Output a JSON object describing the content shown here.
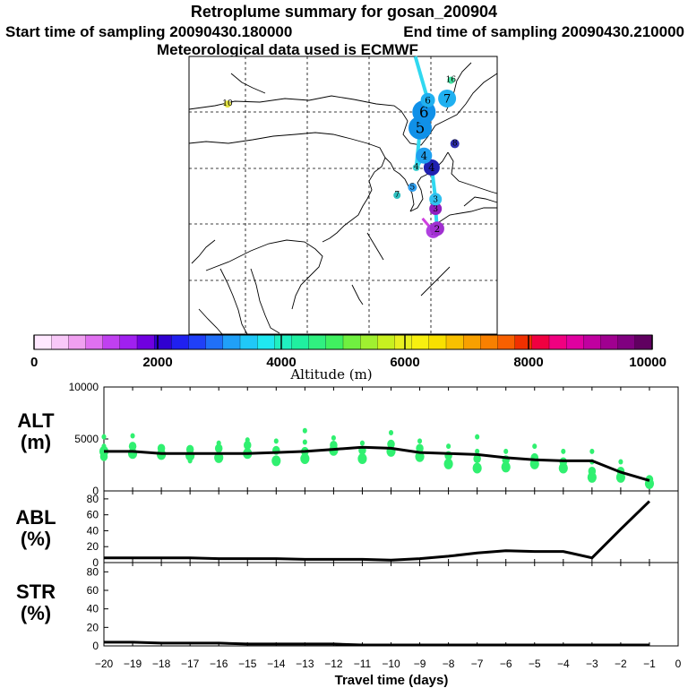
{
  "header": {
    "title": "Retroplume summary for gosan_200904",
    "start_label": "Start time of sampling 20090430.180000",
    "end_label": "End time of sampling 20090430.210000",
    "met_label": "Meteorological data used is ECMWF"
  },
  "map": {
    "points": [
      {
        "lon": 126.7,
        "lat": 33.0,
        "day": 1,
        "color": "#b040e0",
        "size": 8
      },
      {
        "lon": 127.2,
        "lat": 33.3,
        "day": 2,
        "color": "#a030d0",
        "size": 8
      },
      {
        "lon": 127.0,
        "lat": 35.8,
        "day": 3,
        "color": "#9020c0",
        "size": 7
      },
      {
        "lon": 127.0,
        "lat": 37.0,
        "day": 3,
        "color": "#30c0f0",
        "size": 7
      },
      {
        "lon": 126.5,
        "lat": 41.0,
        "day": 4,
        "color": "#2020b0",
        "size": 9
      },
      {
        "lon": 125.5,
        "lat": 42.5,
        "day": 4,
        "color": "#20a0f0",
        "size": 9
      },
      {
        "lon": 124.5,
        "lat": 41.0,
        "day": 4,
        "color": "#40d0d0",
        "size": 4
      },
      {
        "lon": 125.0,
        "lat": 46.0,
        "day": 5,
        "color": "#1090e8",
        "size": 13
      },
      {
        "lon": 125.5,
        "lat": 48.0,
        "day": 6,
        "color": "#1090e8",
        "size": 13
      },
      {
        "lon": 126.0,
        "lat": 49.5,
        "day": 6,
        "color": "#20b0f0",
        "size": 8
      },
      {
        "lon": 128.5,
        "lat": 49.7,
        "day": 7,
        "color": "#20b0f0",
        "size": 10
      },
      {
        "lon": 129.0,
        "lat": 52.0,
        "day": 16,
        "color": "#40e0a0",
        "size": 4
      },
      {
        "lon": 100.0,
        "lat": 49.0,
        "day": 10,
        "color": "#e0e040",
        "size": 4
      },
      {
        "lon": 129.5,
        "lat": 44.0,
        "day": 8,
        "color": "#3030b0",
        "size": 5
      },
      {
        "lon": 124.0,
        "lat": 38.5,
        "day": 5,
        "color": "#30a0f0",
        "size": 5
      },
      {
        "lon": 122.0,
        "lat": 37.5,
        "day": 7,
        "color": "#30c0c0",
        "size": 4
      }
    ],
    "plume_color": "#30d8f0",
    "violet_color": "#d040e0"
  },
  "colorbar": {
    "ticks": [
      "0",
      "2000",
      "4000",
      "6000",
      "8000",
      "10000"
    ],
    "label": "Altitude (m)",
    "colors": [
      "#ffe8ff",
      "#f8c8f8",
      "#f0a0f0",
      "#e070f0",
      "#c040f0",
      "#a020f0",
      "#7000e0",
      "#3000d0",
      "#2020f0",
      "#2040f8",
      "#2070f8",
      "#20a0f8",
      "#20c8f8",
      "#20e8f0",
      "#20f0c0",
      "#20f0a0",
      "#30f080",
      "#40f060",
      "#70f040",
      "#a0f030",
      "#c8f020",
      "#e8f020",
      "#f8f010",
      "#f8e000",
      "#f8c000",
      "#f8a000",
      "#f88000",
      "#f86000",
      "#f03000",
      "#f00040",
      "#f00080",
      "#e000a0",
      "#c000a0",
      "#a00090",
      "#800080",
      "#600060"
    ]
  },
  "chart_data": [
    {
      "type": "line",
      "name": "ALT",
      "ylabel": "ALT (m)",
      "ylabel_top": "ALT",
      "ylabel_bottom": "(m)",
      "ylim": [
        0,
        10000
      ],
      "yticks": [
        "0",
        "5000",
        "10000"
      ],
      "x": [
        -20,
        -19,
        -18,
        -17,
        -16,
        -15,
        -14,
        -13,
        -12,
        -11,
        -10,
        -9,
        -8,
        -7,
        -6,
        -5,
        -4,
        -3,
        -2,
        -1
      ],
      "values": [
        3800,
        3800,
        3600,
        3600,
        3600,
        3600,
        3700,
        3800,
        4000,
        4200,
        4100,
        3700,
        3600,
        3500,
        3200,
        3000,
        2900,
        2900,
        1800,
        1000
      ],
      "scatter": [
        {
          "x": -20,
          "y": [
            3800,
            3300,
            4300,
            5200
          ]
        },
        {
          "x": -19,
          "y": [
            3600,
            4300,
            5300
          ]
        },
        {
          "x": -18,
          "y": [
            3500,
            4100
          ]
        },
        {
          "x": -17,
          "y": [
            3400,
            4000,
            2900
          ]
        },
        {
          "x": -16,
          "y": [
            3200,
            4100,
            4600
          ]
        },
        {
          "x": -15,
          "y": [
            3600,
            4400,
            4900
          ]
        },
        {
          "x": -14,
          "y": [
            2900,
            3900,
            4800
          ]
        },
        {
          "x": -13,
          "y": [
            3100,
            3800,
            4700,
            5800
          ]
        },
        {
          "x": -12,
          "y": [
            3900,
            4400,
            5100
          ]
        },
        {
          "x": -11,
          "y": [
            3100,
            3900,
            4600
          ]
        },
        {
          "x": -10,
          "y": [
            3800,
            4500,
            5600
          ]
        },
        {
          "x": -9,
          "y": [
            3300,
            4100,
            4800
          ]
        },
        {
          "x": -8,
          "y": [
            2600,
            3400,
            4300
          ]
        },
        {
          "x": -7,
          "y": [
            2200,
            3100,
            3800,
            5200
          ]
        },
        {
          "x": -6,
          "y": [
            2300,
            3000,
            3800
          ]
        },
        {
          "x": -5,
          "y": [
            2600,
            3200,
            4300
          ]
        },
        {
          "x": -4,
          "y": [
            2200,
            2800,
            3800
          ]
        },
        {
          "x": -3,
          "y": [
            1300,
            1900,
            2800,
            3800
          ]
        },
        {
          "x": -2,
          "y": [
            1300,
            1900,
            2800
          ]
        },
        {
          "x": -1,
          "y": [
            700,
            1100
          ]
        }
      ],
      "scatter_color": "#30f070"
    },
    {
      "type": "line",
      "name": "ABL",
      "ylabel": "ABL (%)",
      "ylabel_top": "ABL",
      "ylabel_bottom": "(%)",
      "ylim": [
        0,
        90
      ],
      "yticks": [
        "0",
        "20",
        "40",
        "60",
        "80"
      ],
      "x": [
        -20,
        -19,
        -18,
        -17,
        -16,
        -15,
        -14,
        -13,
        -12,
        -11,
        -10,
        -9,
        -8,
        -7,
        -6,
        -5,
        -4,
        -3,
        -2,
        -1
      ],
      "values": [
        6,
        6,
        6,
        6,
        5,
        5,
        5,
        4,
        4,
        4,
        3,
        5,
        8,
        12,
        15,
        14,
        14,
        6,
        42,
        77
      ]
    },
    {
      "type": "line",
      "name": "STR",
      "ylabel": "STR (%)",
      "ylabel_top": "STR",
      "ylabel_bottom": "(%)",
      "ylim": [
        0,
        90
      ],
      "yticks": [
        "0",
        "20",
        "40",
        "60",
        "80"
      ],
      "x": [
        -20,
        -19,
        -18,
        -17,
        -16,
        -15,
        -14,
        -13,
        -12,
        -11,
        -10,
        -9,
        -8,
        -7,
        -6,
        -5,
        -4,
        -3,
        -2,
        -1
      ],
      "values": [
        4,
        4,
        3,
        3,
        3,
        2,
        2,
        2,
        2,
        1,
        1,
        1,
        1,
        1,
        1,
        1,
        1,
        1,
        1,
        1
      ]
    }
  ],
  "xaxis": {
    "ticks": [
      "−20",
      "−19",
      "−18",
      "−17",
      "−16",
      "−15",
      "−14",
      "−13",
      "−12",
      "−11",
      "−10",
      "−9",
      "−8",
      "−7",
      "−6",
      "−5",
      "−4",
      "−3",
      "−2",
      "−1",
      "0"
    ],
    "label": "Travel time (days)"
  }
}
